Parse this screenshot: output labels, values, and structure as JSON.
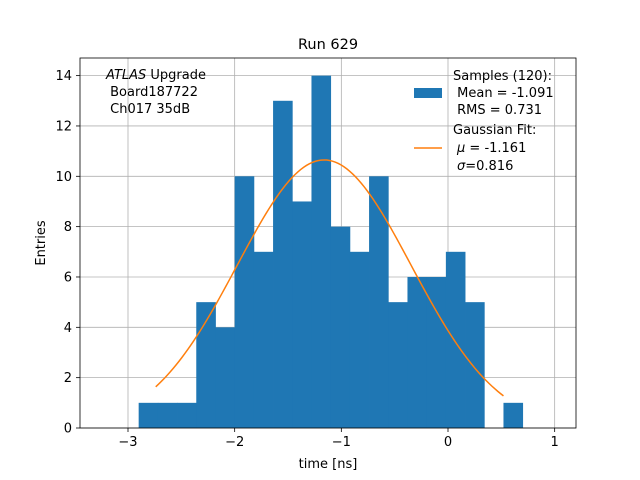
{
  "chart_data": {
    "type": "bar",
    "title": "Run 629",
    "xlabel": "time [ns]",
    "ylabel": "Entries",
    "xlim": [
      -3.45,
      1.2
    ],
    "ylim": [
      0,
      14.7
    ],
    "grid": true,
    "xticks": [
      -3,
      -2,
      -1,
      0,
      1
    ],
    "xtick_labels": [
      "−3",
      "−2",
      "−1",
      "0",
      "1"
    ],
    "yticks": [
      0,
      2,
      4,
      6,
      8,
      10,
      12,
      14
    ],
    "ytick_labels": [
      "0",
      "2",
      "4",
      "6",
      "8",
      "10",
      "12",
      "14"
    ],
    "histogram": {
      "bin_edges": [
        -2.9,
        -2.72,
        -2.54,
        -2.36,
        -2.18,
        -2.0,
        -1.82,
        -1.64,
        -1.46,
        -1.28,
        -1.1,
        -0.92,
        -0.74,
        -0.56,
        -0.38,
        -0.2,
        -0.02,
        0.16,
        0.34,
        0.52,
        0.7
      ],
      "counts": [
        1,
        1,
        1,
        5,
        4,
        10,
        7,
        13,
        9,
        14,
        8,
        7,
        10,
        5,
        6,
        6,
        7,
        5,
        0,
        1
      ],
      "color": "#1f77b4"
    },
    "fit": {
      "type": "gaussian",
      "x_range": [
        -2.74,
        0.52
      ],
      "amplitude": 10.65,
      "mu": -1.161,
      "sigma": 0.816,
      "color": "#ff7f0e"
    },
    "annotation": {
      "italic_part": "ATLAS",
      "rest_line1": " Upgrade",
      "line2": " Board187722",
      "line3": " Ch017 35dB"
    },
    "legend": {
      "position": "top-right",
      "samples_line1": "Samples (120):",
      "samples_line2": " Mean = -1.091",
      "samples_line3": " RMS = 0.731",
      "fit_line1": "Gaussian Fit:",
      "fit_line2_sym": "μ",
      "fit_line2_val": " = -1.161",
      "fit_line3_sym": "σ",
      "fit_line3_val": "=0.816"
    }
  }
}
